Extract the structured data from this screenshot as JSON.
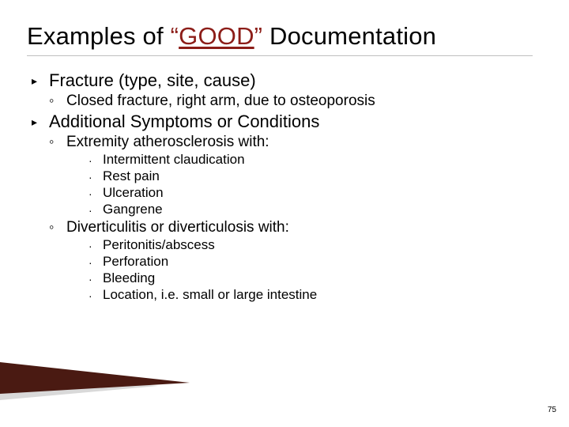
{
  "title": {
    "prefix": "Examples of ",
    "open_quote": "“",
    "word": "GOOD",
    "close_quote": "”",
    "suffix": " Documentation"
  },
  "colors": {
    "accent": "#8c1d18",
    "text": "#000000",
    "rule": "#bfbfbf",
    "decor_dark": "#4a1a12",
    "decor_light": "#d9d9d9"
  },
  "content": [
    {
      "level": 1,
      "text": "Fracture (type, site, cause)"
    },
    {
      "level": 2,
      "text": "Closed fracture, right arm, due to osteoporosis"
    },
    {
      "level": 1,
      "text": "Additional Symptoms or Conditions"
    },
    {
      "level": 2,
      "text": "Extremity atherosclerosis with:"
    },
    {
      "level": 3,
      "text": "Intermittent claudication"
    },
    {
      "level": 3,
      "text": "Rest pain"
    },
    {
      "level": 3,
      "text": "Ulceration"
    },
    {
      "level": 3,
      "text": "Gangrene"
    },
    {
      "level": 2,
      "text": "Diverticulitis or diverticulosis with:"
    },
    {
      "level": 3,
      "text": "Peritonitis/abscess"
    },
    {
      "level": 3,
      "text": "Perforation"
    },
    {
      "level": 3,
      "text": "Bleeding"
    },
    {
      "level": 3,
      "text": "Location, i.e. small or large intestine"
    }
  ],
  "bullets": {
    "l1": "▸",
    "l2": "◦",
    "l3": "·"
  },
  "page_number": "75"
}
